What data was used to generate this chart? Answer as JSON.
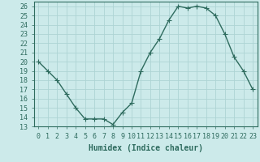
{
  "x": [
    0,
    1,
    2,
    3,
    4,
    5,
    6,
    7,
    8,
    9,
    10,
    11,
    12,
    13,
    14,
    15,
    16,
    17,
    18,
    19,
    20,
    21,
    22,
    23
  ],
  "y": [
    20,
    19,
    18,
    16.5,
    15,
    13.8,
    13.8,
    13.8,
    13.2,
    14.5,
    15.5,
    19,
    21,
    22.5,
    24.5,
    26,
    25.8,
    26,
    25.8,
    25,
    23,
    20.5,
    19,
    17
  ],
  "line_color": "#2e6b5e",
  "marker": "+",
  "marker_size": 4,
  "marker_linewidth": 0.8,
  "bg_color": "#cceaea",
  "grid_color": "#aed4d4",
  "xlabel": "Humidex (Indice chaleur)",
  "xlim": [
    -0.5,
    23.5
  ],
  "ylim": [
    13,
    26.5
  ],
  "yticks": [
    13,
    14,
    15,
    16,
    17,
    18,
    19,
    20,
    21,
    22,
    23,
    24,
    25,
    26
  ],
  "xticks": [
    0,
    1,
    2,
    3,
    4,
    5,
    6,
    7,
    8,
    9,
    10,
    11,
    12,
    13,
    14,
    15,
    16,
    17,
    18,
    19,
    20,
    21,
    22,
    23
  ],
  "axis_color": "#2e6b5e",
  "tick_color": "#2e6b5e",
  "line_width": 1.0,
  "tick_fontsize": 6,
  "xlabel_fontsize": 7
}
